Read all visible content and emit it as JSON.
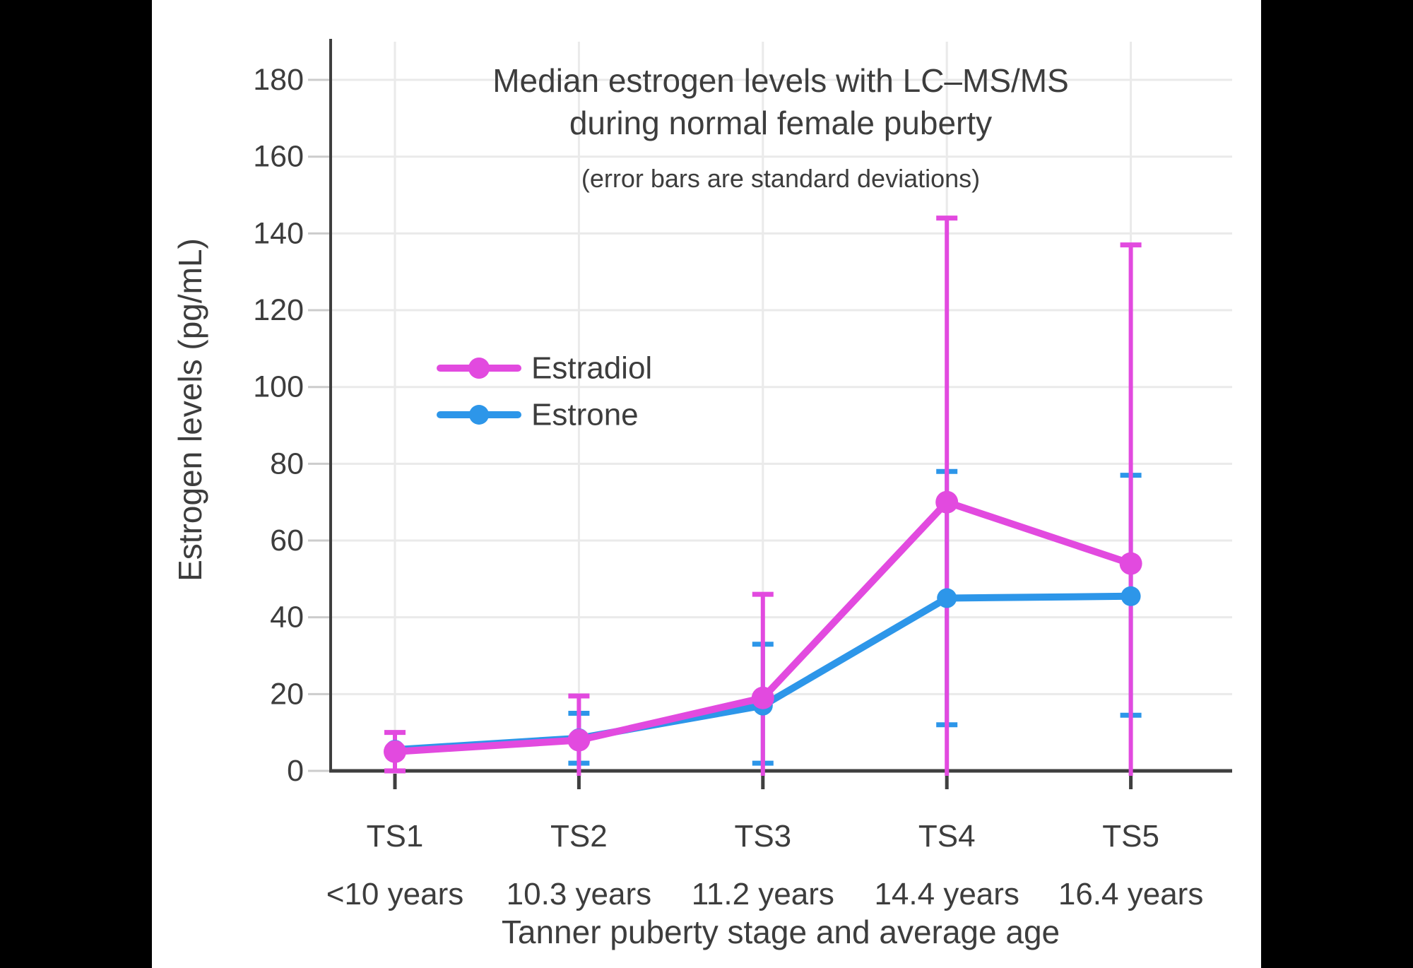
{
  "frame": {
    "letterbox_color": "#000000",
    "canvas_color": "#ffffff"
  },
  "chart_data": {
    "type": "line",
    "title_line1": "Median estrogen levels with LC–MS/MS",
    "title_line2": "during normal female puberty",
    "subtitle": "(error bars are standard deviations)",
    "ylabel": "Estrogen levels (pg/mL)",
    "xlabel": "Tanner puberty stage and average age",
    "categories": [
      "TS1",
      "TS2",
      "TS3",
      "TS4",
      "TS5"
    ],
    "category_ages": [
      "<10 years",
      "10.3 years",
      "11.2 years",
      "14.4 years",
      "16.4 years"
    ],
    "yticks": [
      0,
      20,
      40,
      60,
      80,
      100,
      120,
      140,
      160,
      180
    ],
    "ylim": [
      0,
      190
    ],
    "grid": true,
    "legend_position": "inside-upper-left",
    "error_bar_meaning": "standard deviations",
    "series": [
      {
        "name": "Estradiol",
        "color": "#e24adf",
        "values": [
          5,
          8,
          19,
          70,
          54
        ],
        "err_high": [
          10,
          19.5,
          46,
          144,
          137
        ],
        "err_low": [
          0,
          0,
          0,
          0,
          0
        ],
        "err_low_cap_visible": [
          true,
          false,
          false,
          false,
          false
        ]
      },
      {
        "name": "Estrone",
        "color": "#2d96e9",
        "values": [
          5.5,
          8.5,
          17,
          45,
          45.5
        ],
        "err_high": [
          null,
          15,
          33,
          78,
          77
        ],
        "err_low": [
          null,
          2,
          2,
          12,
          14.5
        ],
        "err_low_cap_visible": [
          false,
          true,
          true,
          true,
          true
        ]
      }
    ],
    "colors": {
      "grid": "#eaeaea",
      "axis": "#3f3f3f",
      "tick_dash": "#cccccc",
      "text": "#3d3d3d"
    }
  }
}
